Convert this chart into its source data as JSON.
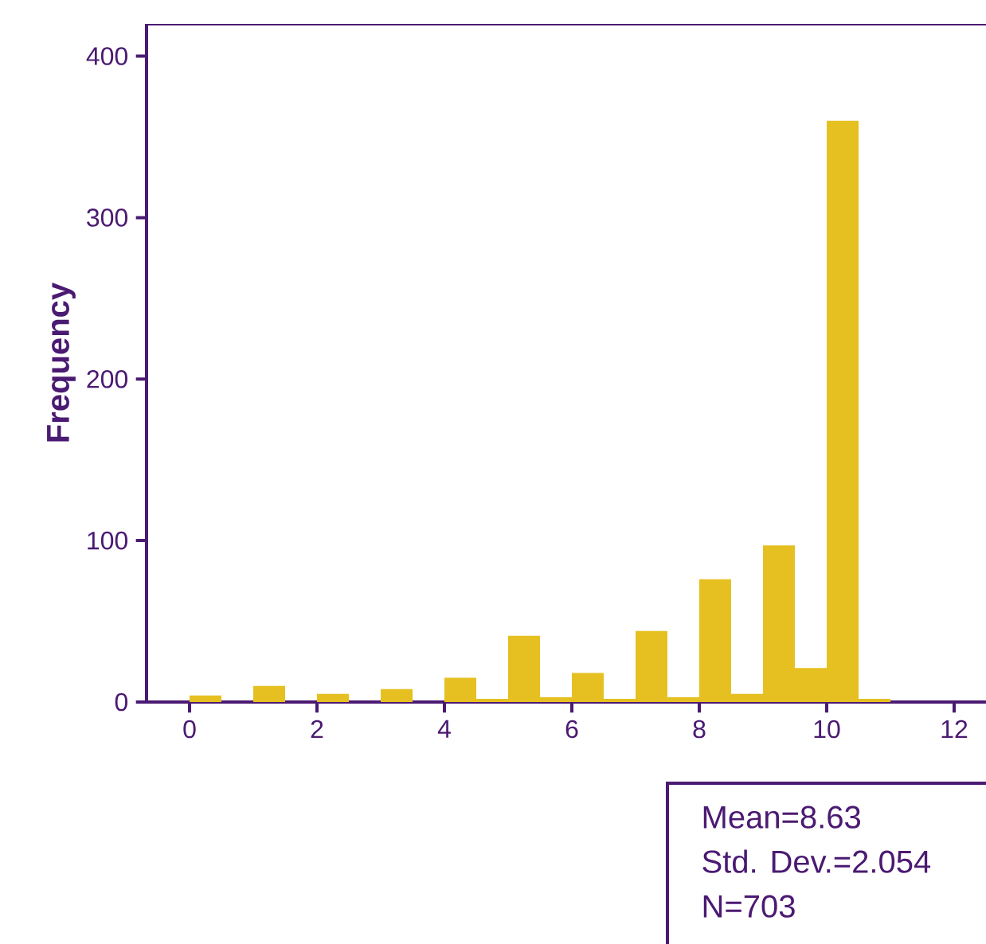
{
  "chart_data": {
    "type": "histogram",
    "ylabel": "Frequency",
    "bins": [
      0,
      0.5,
      1,
      1.5,
      2,
      2.5,
      3,
      3.5,
      4,
      4.5,
      5,
      5.5,
      6,
      6.5,
      7,
      7.5,
      8,
      8.5,
      9,
      9.5,
      10,
      10.5,
      11
    ],
    "values": [
      4,
      0,
      10,
      0,
      5,
      0,
      8,
      0,
      15,
      2,
      41,
      3,
      18,
      2,
      44,
      3,
      76,
      5,
      97,
      21,
      360,
      2
    ],
    "color": "#e6c020",
    "xlim": [
      -0.675,
      12.5
    ],
    "xticks": [
      0,
      2,
      4,
      6,
      8,
      10,
      12
    ],
    "ylim": [
      0,
      420
    ],
    "yticks": [
      0,
      100,
      200,
      300,
      400
    ],
    "grid": false,
    "annotations": [
      "Mean=8.63",
      "Std. Dev.=2.054",
      "N=703"
    ]
  }
}
